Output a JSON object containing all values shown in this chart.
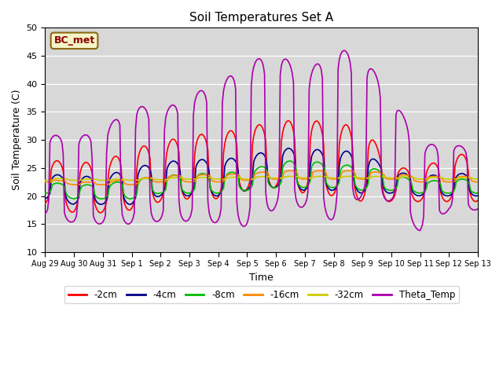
{
  "title": "Soil Temperatures Set A",
  "xlabel": "Time",
  "ylabel": "Soil Temperature (C)",
  "ylim": [
    10,
    50
  ],
  "yticks": [
    10,
    15,
    20,
    25,
    30,
    35,
    40,
    45,
    50
  ],
  "background_color": "#e8e8e8",
  "plot_bg_color": "#d8d8d8",
  "annotation_text": "BC_met",
  "annotation_color": "#8B0000",
  "annotation_bg": "#f5f5c8",
  "legend_entries": [
    "-2cm",
    "-4cm",
    "-8cm",
    "-16cm",
    "-32cm",
    "Theta_Temp"
  ],
  "line_colors": [
    "#ff0000",
    "#00008B",
    "#00bb00",
    "#ff8800",
    "#cccc00",
    "#aa00aa"
  ],
  "line_widths": [
    1.2,
    1.2,
    1.2,
    1.2,
    1.2,
    1.2
  ],
  "tick_labels": [
    "Aug 29",
    "Aug 30",
    "Aug 31",
    "Sep 1",
    "Sep 2",
    "Sep 3",
    "Sep 4",
    "Sep 5",
    "Sep 6",
    "Sep 7",
    "Sep 8",
    "Sep 9",
    "Sep 10",
    "Sep 11",
    "Sep 12",
    "Sep 13"
  ]
}
